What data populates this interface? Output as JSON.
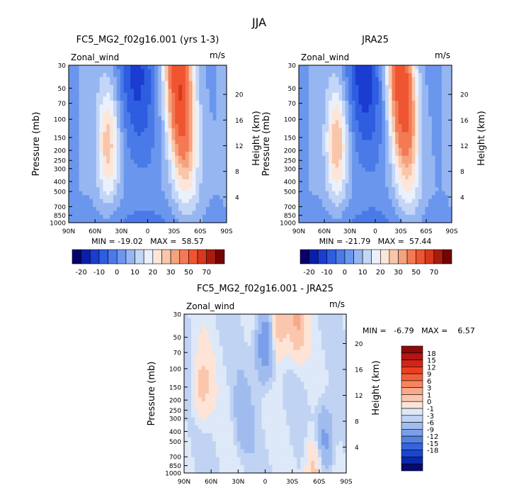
{
  "figure": {
    "title": "JJA"
  },
  "chart_data": [
    {
      "type": "heatmap",
      "title": "FC5_MG2_f02g16.001 (yrs 1-3)",
      "variable": "Zonal_wind",
      "units": "m/s",
      "ylabel": "Pressure (mb)",
      "y2label": "Height (km)",
      "x_ticks": [
        "90N",
        "60N",
        "30N",
        "0",
        "30S",
        "60S",
        "90S"
      ],
      "y_ticks": [
        "30",
        "50",
        "70",
        "100",
        "150",
        "200",
        "250",
        "300",
        "400",
        "500",
        "700",
        "850",
        "1000"
      ],
      "y2_ticks": [
        "20",
        "16",
        "12",
        "8",
        "4"
      ],
      "stats": "MIN = -19.02   MAX =  58.57",
      "colorbar": {
        "orientation": "horizontal",
        "labels": [
          "-20",
          "-10",
          "0",
          "10",
          "20",
          "30",
          "50",
          "70"
        ],
        "colors": [
          "#08006a",
          "#0a1fa8",
          "#1a3cd0",
          "#2f5de0",
          "#4a7ae8",
          "#6b96ee",
          "#96b6f2",
          "#c4d6f7",
          "#eaf1fd",
          "#fde6d8",
          "#f8c6ab",
          "#f5a27e",
          "#f37a54",
          "#ee5530",
          "#d8381d",
          "#a81c10",
          "#730505"
        ]
      },
      "jets": [
        {
          "lat": -45,
          "p": 200,
          "u": 57
        },
        {
          "lat": 45,
          "p": 200,
          "u": 22
        },
        {
          "lat": 15,
          "p": 40,
          "u": -19
        }
      ]
    },
    {
      "type": "heatmap",
      "title": "JRA25",
      "variable": "Zonal_wind",
      "units": "m/s",
      "ylabel": "Pressure (mb)",
      "y2label": "Height (km)",
      "x_ticks": [
        "90N",
        "60N",
        "30N",
        "0",
        "30S",
        "60S",
        "90S"
      ],
      "y_ticks": [
        "30",
        "50",
        "70",
        "100",
        "150",
        "200",
        "250",
        "300",
        "400",
        "500",
        "700",
        "850",
        "1000"
      ],
      "y2_ticks": [
        "20",
        "16",
        "12",
        "8",
        "4"
      ],
      "stats": "MIN = -21.79   MAX =  57.44",
      "colorbar": {
        "orientation": "horizontal",
        "labels": [
          "-20",
          "-10",
          "0",
          "10",
          "20",
          "30",
          "50",
          "70"
        ],
        "colors": [
          "#08006a",
          "#0a1fa8",
          "#1a3cd0",
          "#2f5de0",
          "#4a7ae8",
          "#6b96ee",
          "#96b6f2",
          "#c4d6f7",
          "#eaf1fd",
          "#fde6d8",
          "#f8c6ab",
          "#f5a27e",
          "#f37a54",
          "#ee5530",
          "#d8381d",
          "#a81c10",
          "#730505"
        ]
      },
      "jets": [
        {
          "lat": -40,
          "p": 200,
          "u": 56
        },
        {
          "lat": 45,
          "p": 200,
          "u": 24
        },
        {
          "lat": 15,
          "p": 35,
          "u": -21
        }
      ]
    },
    {
      "type": "heatmap",
      "title": "FC5_MG2_f02g16.001 - JRA25",
      "variable": "Zonal_wind",
      "units": "m/s",
      "ylabel": "Pressure (mb)",
      "y2label": "Height (km)",
      "x_ticks": [
        "90N",
        "60N",
        "30N",
        "0",
        "30S",
        "60S",
        "90S"
      ],
      "y_ticks": [
        "30",
        "50",
        "70",
        "100",
        "150",
        "200",
        "250",
        "300",
        "400",
        "500",
        "700",
        "850",
        "1000"
      ],
      "y2_ticks": [
        "20",
        "16",
        "12",
        "8",
        "4"
      ],
      "stats": "MIN =   -6.79   MAX =    6.57",
      "colorbar": {
        "orientation": "vertical",
        "labels": [
          "18",
          "15",
          "12",
          "9",
          "6",
          "3",
          "1",
          "0",
          "-1",
          "-3",
          "-6",
          "-9",
          "-12",
          "-15",
          "-18"
        ],
        "colors": [
          "#8c0a0a",
          "#b31414",
          "#d42418",
          "#ea3f22",
          "#f2603a",
          "#f58560",
          "#f7a989",
          "#fac7ae",
          "#fde4d6",
          "#dde8f8",
          "#c0d3f3",
          "#a0bcef",
          "#7a9ee9",
          "#5581e3",
          "#3464de",
          "#1a45cf",
          "#0b28a8",
          "#070a70"
        ]
      },
      "anomalies": [
        {
          "lat": 70,
          "p": 150,
          "u": 4
        },
        {
          "lat": -15,
          "p": 40,
          "u": 5
        },
        {
          "lat": -35,
          "p": 35,
          "u": 6
        },
        {
          "lat": 0,
          "p": 60,
          "u": -6
        },
        {
          "lat": 25,
          "p": 300,
          "u": -2
        },
        {
          "lat": -65,
          "p": 500,
          "u": -5
        },
        {
          "lat": -55,
          "p": 900,
          "u": 5
        }
      ]
    }
  ]
}
